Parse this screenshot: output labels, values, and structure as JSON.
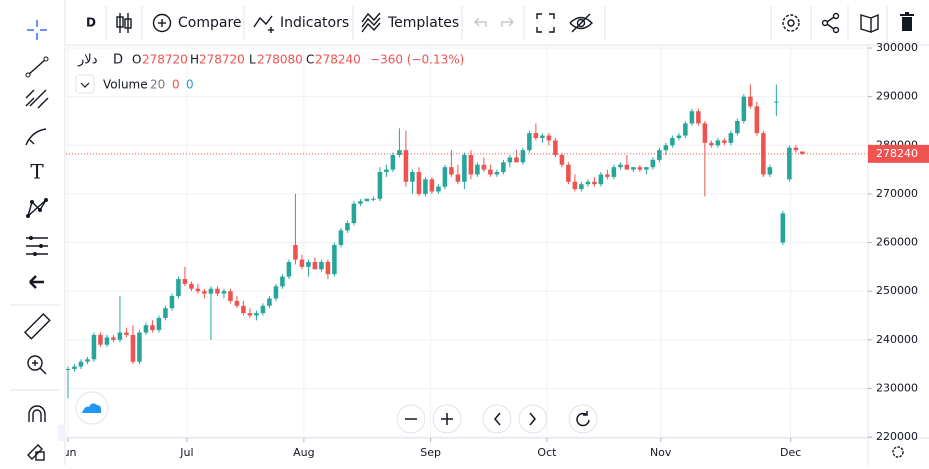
{
  "toolbar": {
    "interval": "D",
    "compare": "Compare",
    "indicators": "Indicators",
    "templates": "Templates"
  },
  "legend": {
    "symbol": "دلار",
    "interval": "D",
    "open_label": "O",
    "high_label": "H",
    "low_label": "L",
    "close_label": "C",
    "change": "−360 (−0.13%)",
    "volume": "Volume",
    "volume_length": "20",
    "volume_value": "0",
    "volume_ma": "0"
  },
  "chart_data": {
    "type": "candlestick",
    "up_color": "#26a69a",
    "down_color": "#ef5350",
    "grid": true,
    "last_price_line": true,
    "xlim": [
      -0.3,
      123.1
    ],
    "ylim": [
      219400,
      301650
    ],
    "xticks": [
      {
        "value": 0,
        "label": "Jun"
      },
      {
        "value": 18.3,
        "label": "Jul"
      },
      {
        "value": 36.3,
        "label": "Aug"
      },
      {
        "value": 55.8,
        "label": "Sep"
      },
      {
        "value": 73.7,
        "label": "Oct"
      },
      {
        "value": 91.2,
        "label": "Nov"
      },
      {
        "value": 111.2,
        "label": "Dec"
      }
    ],
    "yticks": [
      220000,
      230000,
      240000,
      250000,
      260000,
      270000,
      280000,
      290000,
      300000
    ],
    "candles": [
      [
        234000,
        234500,
        228000,
        234000
      ],
      [
        234000,
        235000,
        233500,
        234500
      ],
      [
        234500,
        236000,
        234000,
        235500
      ],
      [
        235500,
        236500,
        235000,
        236000
      ],
      [
        236000,
        241500,
        235500,
        241000
      ],
      [
        241000,
        241500,
        238500,
        239000
      ],
      [
        239000,
        241000,
        238500,
        240500
      ],
      [
        240500,
        241000,
        239500,
        240000
      ],
      [
        240000,
        249000,
        239500,
        241500
      ],
      [
        241500,
        242500,
        240500,
        241000
      ],
      [
        241000,
        243000,
        235000,
        235500
      ],
      [
        235500,
        242000,
        235000,
        241500
      ],
      [
        241500,
        243500,
        241000,
        243000
      ],
      [
        243000,
        244000,
        241500,
        242000
      ],
      [
        242000,
        245000,
        241500,
        244500
      ],
      [
        244500,
        247000,
        244000,
        246500
      ],
      [
        246500,
        249500,
        246000,
        249000
      ],
      [
        249000,
        253000,
        248500,
        252500
      ],
      [
        252500,
        255000,
        251000,
        251500
      ],
      [
        251500,
        252000,
        250000,
        250500
      ],
      [
        250500,
        251500,
        249500,
        250000
      ],
      [
        250000,
        250500,
        248500,
        249500
      ],
      [
        249500,
        251000,
        240000,
        250500
      ],
      [
        250500,
        251000,
        249000,
        249500
      ],
      [
        249500,
        250500,
        248500,
        250000
      ],
      [
        250000,
        250500,
        247500,
        248000
      ],
      [
        248000,
        249000,
        246500,
        247000
      ],
      [
        247000,
        248000,
        245000,
        245500
      ],
      [
        245500,
        246500,
        244500,
        245000
      ],
      [
        245000,
        246000,
        244000,
        245500
      ],
      [
        245500,
        247500,
        245000,
        247000
      ],
      [
        247000,
        249000,
        246500,
        248500
      ],
      [
        248500,
        251500,
        248000,
        251000
      ],
      [
        251000,
        253500,
        250500,
        253000
      ],
      [
        253000,
        256500,
        252500,
        256000
      ],
      [
        259500,
        270000,
        255500,
        256500
      ],
      [
        256500,
        257500,
        254500,
        255000
      ],
      [
        255000,
        256500,
        253000,
        256000
      ],
      [
        256000,
        257000,
        254500,
        254500
      ],
      [
        254500,
        256500,
        254000,
        256000
      ],
      [
        256000,
        256500,
        252500,
        253500
      ],
      [
        253500,
        260000,
        253000,
        259500
      ],
      [
        259500,
        263000,
        259000,
        262500
      ],
      [
        262500,
        264500,
        262000,
        264000
      ],
      [
        264000,
        268500,
        263500,
        268000
      ],
      [
        268000,
        269000,
        267500,
        268500
      ],
      [
        268500,
        269000,
        268500,
        269000
      ],
      [
        269000,
        269500,
        268500,
        269000
      ],
      [
        269000,
        275500,
        268500,
        274500
      ],
      [
        274500,
        276000,
        273500,
        275000
      ],
      [
        275000,
        278500,
        274500,
        278000
      ],
      [
        278000,
        283500,
        277500,
        279000
      ],
      [
        279000,
        283000,
        271500,
        272500
      ],
      [
        272500,
        275000,
        270000,
        274500
      ],
      [
        274500,
        275500,
        269500,
        270000
      ],
      [
        270000,
        273500,
        269500,
        273000
      ],
      [
        273000,
        273500,
        270000,
        270500
      ],
      [
        270500,
        272000,
        270000,
        271500
      ],
      [
        271500,
        276000,
        271000,
        275500
      ],
      [
        275500,
        279000,
        273500,
        274000
      ],
      [
        274000,
        276000,
        272000,
        272500
      ],
      [
        272500,
        278500,
        271000,
        278000
      ],
      [
        278000,
        279000,
        273000,
        274000
      ],
      [
        274000,
        276500,
        273500,
        276000
      ],
      [
        276000,
        277500,
        274500,
        275000
      ],
      [
        275000,
        276000,
        273500,
        274000
      ],
      [
        274000,
        275000,
        273500,
        274500
      ],
      [
        274500,
        277000,
        274000,
        276500
      ],
      [
        276500,
        278000,
        275500,
        277500
      ],
      [
        277500,
        279000,
        276500,
        276500
      ],
      [
        276500,
        279500,
        276000,
        279000
      ],
      [
        279000,
        283000,
        278500,
        282500
      ],
      [
        282500,
        284500,
        281000,
        281500
      ],
      [
        281500,
        282500,
        280500,
        282000
      ],
      [
        282000,
        282500,
        280000,
        281000
      ],
      [
        281000,
        281500,
        277500,
        278000
      ],
      [
        278000,
        278500,
        275500,
        276000
      ],
      [
        276000,
        276500,
        272000,
        272500
      ],
      [
        272500,
        274000,
        270500,
        271000
      ],
      [
        271000,
        272500,
        270500,
        272000
      ],
      [
        272000,
        273000,
        271500,
        272500
      ],
      [
        272500,
        273500,
        271500,
        272000
      ],
      [
        272000,
        274500,
        271500,
        274000
      ],
      [
        274000,
        275000,
        273000,
        273500
      ],
      [
        273500,
        276000,
        273000,
        275500
      ],
      [
        275500,
        276500,
        275000,
        276000
      ],
      [
        276000,
        278000,
        275500,
        275000
      ],
      [
        275000,
        275500,
        274500,
        275500
      ],
      [
        275500,
        276000,
        274500,
        275000
      ],
      [
        275000,
        275500,
        274000,
        275500
      ],
      [
        275500,
        277500,
        275000,
        277000
      ],
      [
        277000,
        279500,
        276500,
        279000
      ],
      [
        279000,
        280500,
        278000,
        280000
      ],
      [
        280000,
        282000,
        279500,
        281500
      ],
      [
        281500,
        282500,
        281000,
        282000
      ],
      [
        282000,
        285000,
        281500,
        284500
      ],
      [
        284500,
        287500,
        284000,
        287000
      ],
      [
        287000,
        287500,
        284000,
        284500
      ],
      [
        284500,
        285000,
        269500,
        280500
      ],
      [
        280500,
        281000,
        279500,
        280000
      ],
      [
        280000,
        281500,
        279500,
        281000
      ],
      [
        281000,
        281500,
        280000,
        280500
      ],
      [
        280500,
        283000,
        280000,
        282500
      ],
      [
        282500,
        285500,
        282000,
        285000
      ],
      [
        285000,
        290500,
        284500,
        290000
      ],
      [
        290000,
        292500,
        287500,
        288000
      ],
      [
        288000,
        289000,
        282000,
        282500
      ],
      [
        282500,
        283000,
        273500,
        274000
      ],
      [
        274000,
        276000,
        273500,
        275500
      ],
      [
        289000,
        292500,
        286000,
        289000
      ],
      [
        260000,
        266500,
        259500,
        266000
      ],
      [
        273000,
        280000,
        272500,
        279500
      ],
      [
        279500,
        280000,
        278500,
        279000
      ],
      [
        278720,
        278720,
        278080,
        278240
      ]
    ]
  }
}
